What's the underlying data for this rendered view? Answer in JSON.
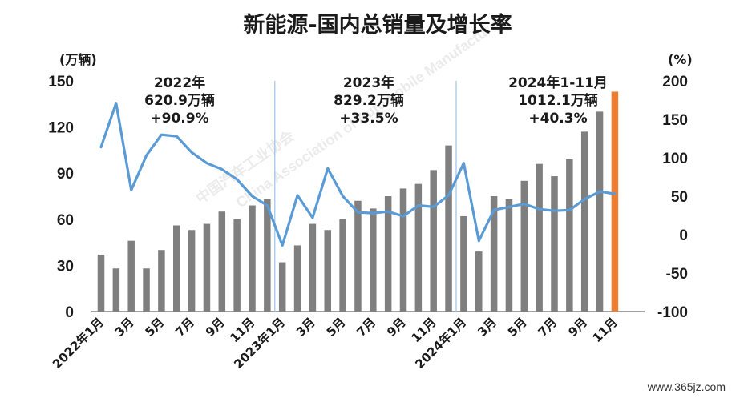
{
  "chart_data": {
    "type": "bar",
    "title": "新能源-国内总销量及增长率",
    "left_unit": "(万辆)",
    "right_unit": "(%)",
    "y_left_lim": [
      0,
      150
    ],
    "y_left_ticks": [
      "0",
      "30",
      "60",
      "90",
      "120",
      "150"
    ],
    "y_right_lim": [
      -100,
      200
    ],
    "y_right_ticks": [
      "-100",
      "-50",
      "0",
      "50",
      "100",
      "150",
      "200"
    ],
    "x_tick_labels": [
      {
        "i": 0,
        "text": "2022年1月"
      },
      {
        "i": 2,
        "text": "3月"
      },
      {
        "i": 4,
        "text": "5月"
      },
      {
        "i": 6,
        "text": "7月"
      },
      {
        "i": 8,
        "text": "9月"
      },
      {
        "i": 10,
        "text": "11月"
      },
      {
        "i": 12,
        "text": "2023年1月"
      },
      {
        "i": 14,
        "text": "3月"
      },
      {
        "i": 16,
        "text": "5月"
      },
      {
        "i": 18,
        "text": "7月"
      },
      {
        "i": 20,
        "text": "9月"
      },
      {
        "i": 22,
        "text": "11月"
      },
      {
        "i": 24,
        "text": "2024年1月"
      },
      {
        "i": 26,
        "text": "3月"
      },
      {
        "i": 28,
        "text": "5月"
      },
      {
        "i": 30,
        "text": "7月"
      },
      {
        "i": 32,
        "text": "9月"
      },
      {
        "i": 34,
        "text": "11月"
      }
    ],
    "series": [
      {
        "kind": "bar",
        "values": [
          37,
          28,
          46,
          28,
          40,
          56,
          53,
          57,
          65,
          60,
          69,
          73,
          32,
          43,
          57,
          53,
          60,
          72,
          67,
          75,
          80,
          83,
          92,
          108,
          62,
          39,
          75,
          73,
          85,
          96,
          88,
          99,
          117,
          130,
          143
        ],
        "highlight_last": true
      },
      {
        "kind": "line",
        "axis": "right",
        "values": [
          114,
          171,
          58,
          103,
          130,
          128,
          107,
          93,
          85,
          72,
          50,
          38,
          -14,
          51,
          22,
          86,
          50,
          29,
          28,
          30,
          24,
          38,
          36,
          51,
          93,
          -8,
          32,
          36,
          40,
          33,
          31,
          32,
          46,
          56,
          53
        ]
      }
    ],
    "annotations": [
      {
        "lines": [
          "2022年",
          "620.9万辆",
          "+90.9%"
        ]
      },
      {
        "lines": [
          "2023年",
          "829.2万辆",
          "+33.5%"
        ]
      },
      {
        "lines": [
          "2024年1-11月",
          "1012.1万辆",
          "+40.3%"
        ]
      }
    ],
    "colors": {
      "bar": "#7f7f7f",
      "bar_highlight": "#ed7d31",
      "line": "#5b9bd5",
      "divider": "#9dc3e6"
    }
  },
  "watermark": {
    "text_cn": "中国汽车工业协会",
    "text_en": "China Association of Automobile Manufacturers",
    "site": "www.365jz.com"
  }
}
